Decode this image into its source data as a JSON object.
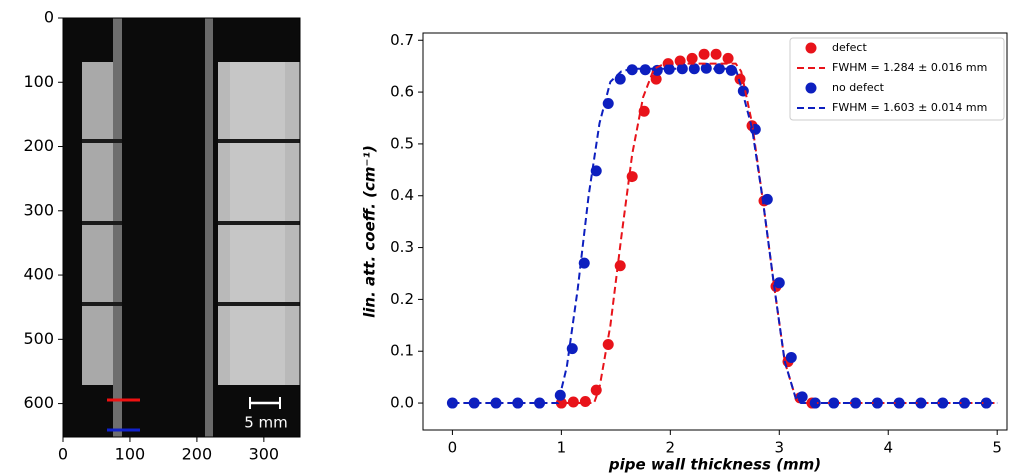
{
  "chart_data": [
    {
      "type": "image",
      "xlim": [
        0,
        354
      ],
      "ylim": [
        0,
        652
      ],
      "y_inverted": true,
      "xticks": [
        0,
        100,
        200,
        300
      ],
      "yticks": [
        0,
        100,
        200,
        300,
        400,
        500,
        600
      ],
      "annotations": [
        "5 mm"
      ]
    },
    {
      "type": "scatter",
      "xlabel": "pipe wall thickness (mm)",
      "ylabel": "lin. att. coeff. (cm⁻¹)",
      "xlim": [
        -0.27,
        5.09
      ],
      "ylim": [
        -0.052,
        0.714
      ],
      "xticks": [
        0,
        1,
        2,
        3,
        4,
        5
      ],
      "yticks": [
        {
          "value": 0,
          "label": "0.0"
        },
        0.1,
        0.2,
        0.3,
        0.4,
        0.5,
        0.6,
        0.7
      ],
      "legend": "upper right",
      "series": [
        {
          "name": "defect",
          "color": "#e8131a",
          "style": "points",
          "x": [
            1.0,
            1.11,
            1.22,
            1.32,
            1.43,
            1.54,
            1.65,
            1.76,
            1.87,
            1.98,
            2.09,
            2.2,
            2.31,
            2.42,
            2.53,
            2.64,
            2.75,
            2.86,
            2.97,
            3.08,
            3.19,
            3.3
          ],
          "values": [
            0,
            0.002,
            0.003,
            0.025,
            0.113,
            0.265,
            0.437,
            0.563,
            0.625,
            0.655,
            0.66,
            0.665,
            0.673,
            0.673,
            0.665,
            0.625,
            0.535,
            0.39,
            0.225,
            0.08,
            0.01,
            0
          ]
        },
        {
          "name": "FWHM = 1.284 ± 0.016 mm",
          "color": "#e8131a",
          "style": "dashed",
          "x": [
            0,
            1.0,
            1.3,
            1.35,
            1.45,
            1.55,
            1.65,
            1.75,
            1.85,
            1.95,
            2.6,
            2.65,
            2.75,
            2.85,
            2.95,
            3.05,
            3.15,
            3.2,
            5.0
          ],
          "values": [
            0,
            0,
            0,
            0.03,
            0.15,
            0.32,
            0.48,
            0.59,
            0.645,
            0.655,
            0.655,
            0.64,
            0.54,
            0.39,
            0.23,
            0.08,
            0.01,
            0,
            0
          ]
        },
        {
          "name": "no defect",
          "color": "#0d1fbf",
          "style": "points",
          "x": [
            0,
            0.2,
            0.4,
            0.6,
            0.8,
            0.99,
            1.1,
            1.21,
            1.32,
            1.43,
            1.54,
            1.65,
            1.77,
            1.88,
            1.99,
            2.11,
            2.22,
            2.33,
            2.45,
            2.56,
            2.67,
            2.78,
            2.89,
            3.0,
            3.11,
            3.21,
            3.33,
            3.5,
            3.7,
            3.9,
            4.1,
            4.3,
            4.5,
            4.7,
            4.9
          ],
          "values": [
            0,
            0,
            0,
            0,
            0,
            0.015,
            0.105,
            0.27,
            0.448,
            0.578,
            0.625,
            0.643,
            0.643,
            0.642,
            0.644,
            0.645,
            0.645,
            0.646,
            0.645,
            0.642,
            0.602,
            0.528,
            0.393,
            0.232,
            0.088,
            0.012,
            0,
            0,
            0,
            0,
            0,
            0,
            0,
            0,
            0
          ]
        },
        {
          "name": "FWHM = 1.603 ± 0.014 mm",
          "color": "#0d1fbf",
          "style": "dashed",
          "x": [
            0,
            0.97,
            1.05,
            1.15,
            1.25,
            1.35,
            1.45,
            1.55,
            1.65,
            2.6,
            2.65,
            2.75,
            2.85,
            2.95,
            3.05,
            3.15,
            3.2,
            5.0
          ],
          "values": [
            0,
            0,
            0.07,
            0.22,
            0.4,
            0.54,
            0.62,
            0.64,
            0.645,
            0.645,
            0.61,
            0.53,
            0.39,
            0.23,
            0.08,
            0.01,
            0,
            0
          ]
        }
      ]
    }
  ]
}
